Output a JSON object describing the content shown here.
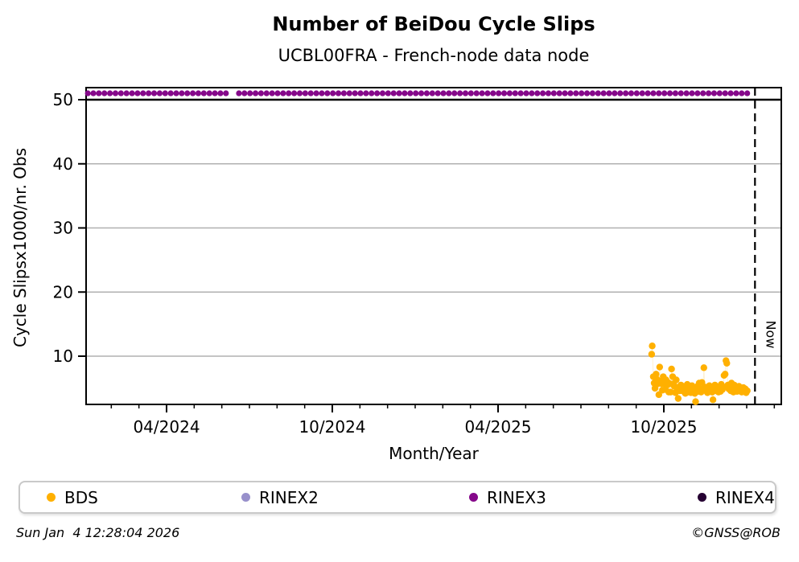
{
  "page": {
    "title": "Number of BeiDou Cycle Slips",
    "subtitle": "UCBL00FRA - French-node data node",
    "timestamp": "Sun Jan  4 12:28:04 2026",
    "credit": "©GNSS@ROB"
  },
  "legend": {
    "items": [
      {
        "label": "BDS",
        "color": "#FFB000"
      },
      {
        "label": "RINEX2",
        "color": "#9890CB"
      },
      {
        "label": "RINEX3",
        "color": "#85088A"
      },
      {
        "label": "RINEX4",
        "color": "#260132"
      }
    ]
  },
  "chart_data": {
    "type": "scatter",
    "title": "Number of BeiDou Cycle Slips",
    "subtitle": "UCBL00FRA - French-node data node",
    "xlabel": "Month/Year",
    "ylabel": "Cycle Slipsx1000/nr. Obs",
    "x_axis": {
      "unit": "months_since_2024_01",
      "min": 0.1,
      "max": 25.25,
      "major_ticks": [
        {
          "m": 3,
          "label": "04/2024"
        },
        {
          "m": 9,
          "label": "10/2024"
        },
        {
          "m": 15,
          "label": "04/2025"
        },
        {
          "m": 21,
          "label": "10/2025"
        }
      ],
      "minor_tick_every_months": 1
    },
    "y_axis": {
      "min": 2.4,
      "max": 51.9,
      "ticks": [
        10,
        20,
        30,
        40,
        50
      ],
      "grid": true,
      "grid_color": "#b0b0b0"
    },
    "cap_line": {
      "value": 50,
      "color": "#000000"
    },
    "now_marker": {
      "m": 24.3,
      "label": "Now",
      "style": "dashed",
      "color": "#000000"
    },
    "legend_position": "bottom",
    "series": [
      {
        "name": "RINEX3",
        "color": "#85088A",
        "style": "marker-line",
        "value": 51,
        "segments": [
          [
            0.15,
            5.33
          ],
          [
            5.62,
            24.06
          ]
        ]
      },
      {
        "name": "RINEX2",
        "color": "#9890CB",
        "style": "scatter",
        "points": []
      },
      {
        "name": "RINEX4",
        "color": "#260132",
        "style": "scatter",
        "points": []
      },
      {
        "name": "BDS",
        "color": "#FFB000",
        "style": "scatter-faint-line",
        "points": [
          [
            20.56,
            10.3
          ],
          [
            20.58,
            11.6
          ],
          [
            20.62,
            6.8
          ],
          [
            20.65,
            5.8
          ],
          [
            20.68,
            5.0
          ],
          [
            20.72,
            7.2
          ],
          [
            20.75,
            6.4
          ],
          [
            20.78,
            5.7
          ],
          [
            20.82,
            4.0
          ],
          [
            20.85,
            8.3
          ],
          [
            20.88,
            6.1
          ],
          [
            20.92,
            5.7
          ],
          [
            20.95,
            4.7
          ],
          [
            20.98,
            6.8
          ],
          [
            21.02,
            5.7
          ],
          [
            21.05,
            4.8
          ],
          [
            21.08,
            6.3
          ],
          [
            21.12,
            5.5
          ],
          [
            21.15,
            5.9
          ],
          [
            21.18,
            4.4
          ],
          [
            21.22,
            5.7
          ],
          [
            21.25,
            4.4
          ],
          [
            21.28,
            8.0
          ],
          [
            21.32,
            6.8
          ],
          [
            21.35,
            5.7
          ],
          [
            21.38,
            5.3
          ],
          [
            21.42,
            4.3
          ],
          [
            21.45,
            6.3
          ],
          [
            21.48,
            5.0
          ],
          [
            21.52,
            3.4
          ],
          [
            21.55,
            5.2
          ],
          [
            21.58,
            4.6
          ],
          [
            21.62,
            5.5
          ],
          [
            21.65,
            4.9
          ],
          [
            21.68,
            5.3
          ],
          [
            21.72,
            4.5
          ],
          [
            21.75,
            5.0
          ],
          [
            21.78,
            4.2
          ],
          [
            21.82,
            4.8
          ],
          [
            21.85,
            5.6
          ],
          [
            21.88,
            4.4
          ],
          [
            21.92,
            5.1
          ],
          [
            21.95,
            4.7
          ],
          [
            21.98,
            4.3
          ],
          [
            22.02,
            5.4
          ],
          [
            22.05,
            4.6
          ],
          [
            22.08,
            5.0
          ],
          [
            22.12,
            4.2
          ],
          [
            22.15,
            2.9
          ],
          [
            22.18,
            4.8
          ],
          [
            22.22,
            5.3
          ],
          [
            22.25,
            4.5
          ],
          [
            22.28,
            5.8
          ],
          [
            22.32,
            4.9
          ],
          [
            22.35,
            4.4
          ],
          [
            22.38,
            5.9
          ],
          [
            22.42,
            4.9
          ],
          [
            22.45,
            8.2
          ],
          [
            22.48,
            5.2
          ],
          [
            22.52,
            4.6
          ],
          [
            22.55,
            5.0
          ],
          [
            22.58,
            4.3
          ],
          [
            22.62,
            4.7
          ],
          [
            22.65,
            5.4
          ],
          [
            22.68,
            4.5
          ],
          [
            22.72,
            5.1
          ],
          [
            22.75,
            4.4
          ],
          [
            22.78,
            3.2
          ],
          [
            22.82,
            4.9
          ],
          [
            22.85,
            5.5
          ],
          [
            22.88,
            4.6
          ],
          [
            22.92,
            5.2
          ],
          [
            22.95,
            4.8
          ],
          [
            22.98,
            4.4
          ],
          [
            23.02,
            5.0
          ],
          [
            23.05,
            4.5
          ],
          [
            23.08,
            5.6
          ],
          [
            23.12,
            4.8
          ],
          [
            23.15,
            5.2
          ],
          [
            23.18,
            7.0
          ],
          [
            23.22,
            7.2
          ],
          [
            23.25,
            9.3
          ],
          [
            23.28,
            8.9
          ],
          [
            23.32,
            5.5
          ],
          [
            23.35,
            4.9
          ],
          [
            23.38,
            5.3
          ],
          [
            23.42,
            4.6
          ],
          [
            23.45,
            5.8
          ],
          [
            23.48,
            5.1
          ],
          [
            23.52,
            4.4
          ],
          [
            23.55,
            5.5
          ],
          [
            23.58,
            4.8
          ],
          [
            23.62,
            5.2
          ],
          [
            23.65,
            4.5
          ],
          [
            23.68,
            4.9
          ],
          [
            23.72,
            5.3
          ],
          [
            23.75,
            4.6
          ],
          [
            23.78,
            5.0
          ],
          [
            23.82,
            4.4
          ],
          [
            23.85,
            4.8
          ],
          [
            23.88,
            5.1
          ],
          [
            23.92,
            4.5
          ],
          [
            23.95,
            4.9
          ],
          [
            23.98,
            4.3
          ],
          [
            24.02,
            4.6
          ]
        ]
      }
    ]
  }
}
